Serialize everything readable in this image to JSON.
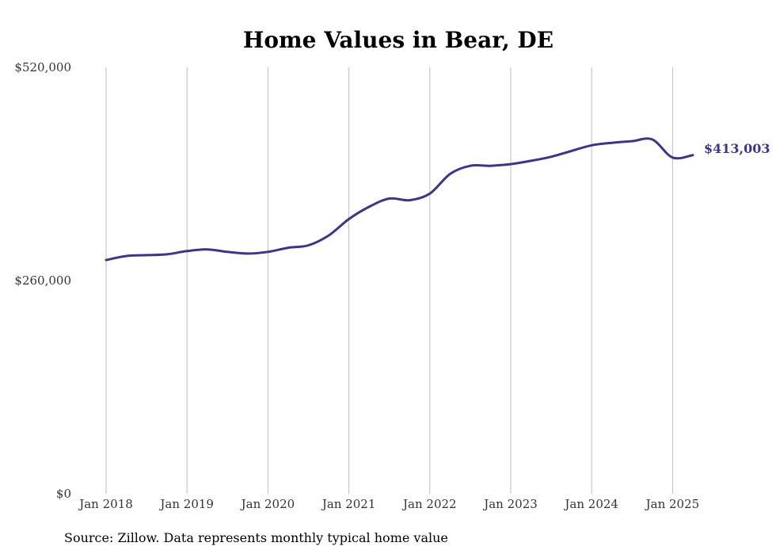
{
  "chart_data": {
    "type": "line",
    "title": "Home Values in Bear, DE",
    "xlabel": "",
    "ylabel": "",
    "ylim": [
      0,
      520000
    ],
    "y_ticks": [
      {
        "value": 520000,
        "label": "$520,000"
      },
      {
        "value": 260000,
        "label": "$260,000"
      },
      {
        "value": 0,
        "label": "$0"
      }
    ],
    "x_ticks": [
      {
        "value": 2018.0,
        "label": "Jan 2018"
      },
      {
        "value": 2019.0,
        "label": "Jan 2019"
      },
      {
        "value": 2020.0,
        "label": "Jan 2020"
      },
      {
        "value": 2021.0,
        "label": "Jan 2021"
      },
      {
        "value": 2022.0,
        "label": "Jan 2022"
      },
      {
        "value": 2023.0,
        "label": "Jan 2023"
      },
      {
        "value": 2024.0,
        "label": "Jan 2024"
      },
      {
        "value": 2025.0,
        "label": "Jan 2025"
      }
    ],
    "xlim": [
      2018.0,
      2025.25
    ],
    "grid": "vertical",
    "color": "#3d3390",
    "series": [
      {
        "x": [
          2018.0,
          2018.25,
          2018.5,
          2018.75,
          2019.0,
          2019.25,
          2019.5,
          2019.75,
          2020.0,
          2020.25,
          2020.5,
          2020.75,
          2021.0,
          2021.25,
          2021.5,
          2021.75,
          2022.0,
          2022.25,
          2022.5,
          2022.75,
          2023.0,
          2023.25,
          2023.5,
          2023.75,
          2024.0,
          2024.25,
          2024.5,
          2024.75,
          2025.0,
          2025.25
        ],
        "y": [
          285000,
          290000,
          291000,
          292000,
          296000,
          298000,
          295000,
          293000,
          295000,
          300000,
          303000,
          315000,
          335000,
          350000,
          360000,
          358000,
          366000,
          390000,
          400000,
          400000,
          402000,
          406000,
          411000,
          418000,
          425000,
          428000,
          430000,
          432000,
          410000,
          413000
        ]
      }
    ],
    "end_label": "$413,003",
    "source": "Source: Zillow. Data represents monthly typical home value"
  }
}
